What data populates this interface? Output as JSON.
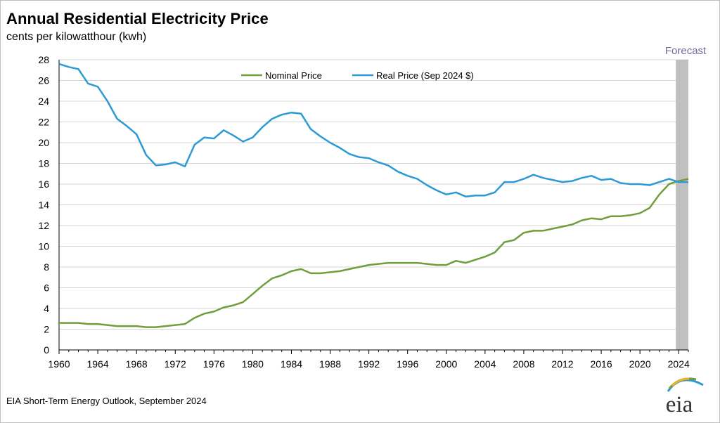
{
  "title": "Annual Residential Electricity Price",
  "subtitle": "cents per kilowatthour (kwh)",
  "source": "EIA Short-Term Energy Outlook, September 2024",
  "logo_text": "eia",
  "colors": {
    "nominal": "#6f9e3a",
    "real": "#2c9ad5",
    "forecast_shade": "#c0c0c0",
    "forecast_label": "#6a6a9c",
    "grid": "#d4d4d4",
    "axis": "#000000"
  },
  "chart_data": {
    "type": "line",
    "title": "Annual Residential Electricity Price",
    "ylabel": "cents per kilowatthour (kwh)",
    "xlabel": "",
    "xlim": [
      1960,
      2025
    ],
    "ylim": [
      0,
      28
    ],
    "y_ticks": [
      0,
      2,
      4,
      6,
      8,
      10,
      12,
      14,
      16,
      18,
      20,
      22,
      24,
      26,
      28
    ],
    "x_ticks": [
      1960,
      1964,
      1968,
      1972,
      1976,
      1980,
      1984,
      1988,
      1992,
      1996,
      2000,
      2004,
      2008,
      2012,
      2016,
      2020,
      2024
    ],
    "grid": "horizontal",
    "legend_position": "top-center",
    "forecast_label": "Forecast",
    "forecast_range": [
      2023.7,
      2025.7
    ],
    "x": [
      1960,
      1961,
      1962,
      1963,
      1964,
      1965,
      1966,
      1967,
      1968,
      1969,
      1970,
      1971,
      1972,
      1973,
      1974,
      1975,
      1976,
      1977,
      1978,
      1979,
      1980,
      1981,
      1982,
      1983,
      1984,
      1985,
      1986,
      1987,
      1988,
      1989,
      1990,
      1991,
      1992,
      1993,
      1994,
      1995,
      1996,
      1997,
      1998,
      1999,
      2000,
      2001,
      2002,
      2003,
      2004,
      2005,
      2006,
      2007,
      2008,
      2009,
      2010,
      2011,
      2012,
      2013,
      2014,
      2015,
      2016,
      2017,
      2018,
      2019,
      2020,
      2021,
      2022,
      2023,
      2024,
      2025
    ],
    "series": [
      {
        "name": "Nominal Price",
        "values": [
          2.6,
          2.6,
          2.6,
          2.5,
          2.5,
          2.4,
          2.3,
          2.3,
          2.3,
          2.2,
          2.2,
          2.3,
          2.4,
          2.5,
          3.1,
          3.5,
          3.7,
          4.1,
          4.3,
          4.6,
          5.4,
          6.2,
          6.9,
          7.2,
          7.6,
          7.8,
          7.4,
          7.4,
          7.5,
          7.6,
          7.8,
          8.0,
          8.2,
          8.3,
          8.4,
          8.4,
          8.4,
          8.4,
          8.3,
          8.2,
          8.2,
          8.6,
          8.4,
          8.7,
          9.0,
          9.4,
          10.4,
          10.6,
          11.3,
          11.5,
          11.5,
          11.7,
          11.9,
          12.1,
          12.5,
          12.7,
          12.6,
          12.9,
          12.9,
          13.0,
          13.2,
          13.7,
          15.0,
          16.0,
          16.3,
          16.5
        ]
      },
      {
        "name": "Real Price (Sep 2024 $)",
        "values": [
          27.6,
          27.3,
          27.1,
          25.7,
          25.4,
          24.0,
          22.3,
          21.6,
          20.8,
          18.8,
          17.8,
          17.9,
          18.1,
          17.7,
          19.8,
          20.5,
          20.4,
          21.2,
          20.7,
          20.1,
          20.5,
          21.5,
          22.3,
          22.7,
          22.9,
          22.8,
          21.3,
          20.6,
          20.0,
          19.5,
          18.9,
          18.6,
          18.5,
          18.1,
          17.8,
          17.2,
          16.8,
          16.5,
          15.9,
          15.4,
          15.0,
          15.2,
          14.8,
          14.9,
          14.9,
          15.2,
          16.2,
          16.2,
          16.5,
          16.9,
          16.6,
          16.4,
          16.2,
          16.3,
          16.6,
          16.8,
          16.4,
          16.5,
          16.1,
          16.0,
          16.0,
          15.9,
          16.2,
          16.5,
          16.2,
          16.2
        ]
      }
    ]
  }
}
